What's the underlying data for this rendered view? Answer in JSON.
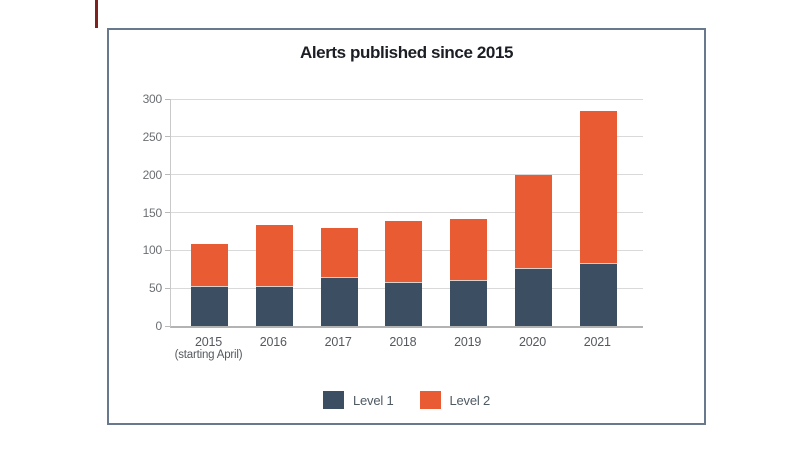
{
  "page": {
    "background": "#ffffff",
    "edge_mark_color": "#7e2220",
    "frame_border_color": "#68798d"
  },
  "chart_data": {
    "type": "bar",
    "stacked": true,
    "title": "Alerts published since 2015",
    "categories": [
      {
        "label": "2015",
        "sublabel": "(starting April)"
      },
      {
        "label": "2016",
        "sublabel": ""
      },
      {
        "label": "2017",
        "sublabel": ""
      },
      {
        "label": "2018",
        "sublabel": ""
      },
      {
        "label": "2019",
        "sublabel": ""
      },
      {
        "label": "2020",
        "sublabel": ""
      },
      {
        "label": "2021",
        "sublabel": ""
      }
    ],
    "series": [
      {
        "name": "Level 1",
        "color": "#3B4E62",
        "values": [
          52,
          52,
          64,
          57,
          60,
          76,
          82
        ]
      },
      {
        "name": "Level 2",
        "color": "#E95C33",
        "values": [
          57,
          82,
          66,
          82,
          82,
          124,
          202
        ]
      }
    ],
    "totals": [
      109,
      134,
      130,
      139,
      142,
      200,
      284
    ],
    "ylim": [
      0,
      300
    ],
    "yticks": [
      0,
      50,
      100,
      150,
      200,
      250,
      300
    ],
    "grid": true,
    "legend_position": "bottom",
    "colors": {
      "gridline": "#d9d9d9",
      "axis_line": "#c9c9c9",
      "baseline": "#b3b3b3",
      "tick_mark": "#b9b9b9",
      "y_tick_label": "#6b6f73",
      "x_label": "#55595e",
      "title": "#1b1e24",
      "legend_label": "#4e5a64",
      "stack_separator": "#d9cfcb"
    }
  }
}
